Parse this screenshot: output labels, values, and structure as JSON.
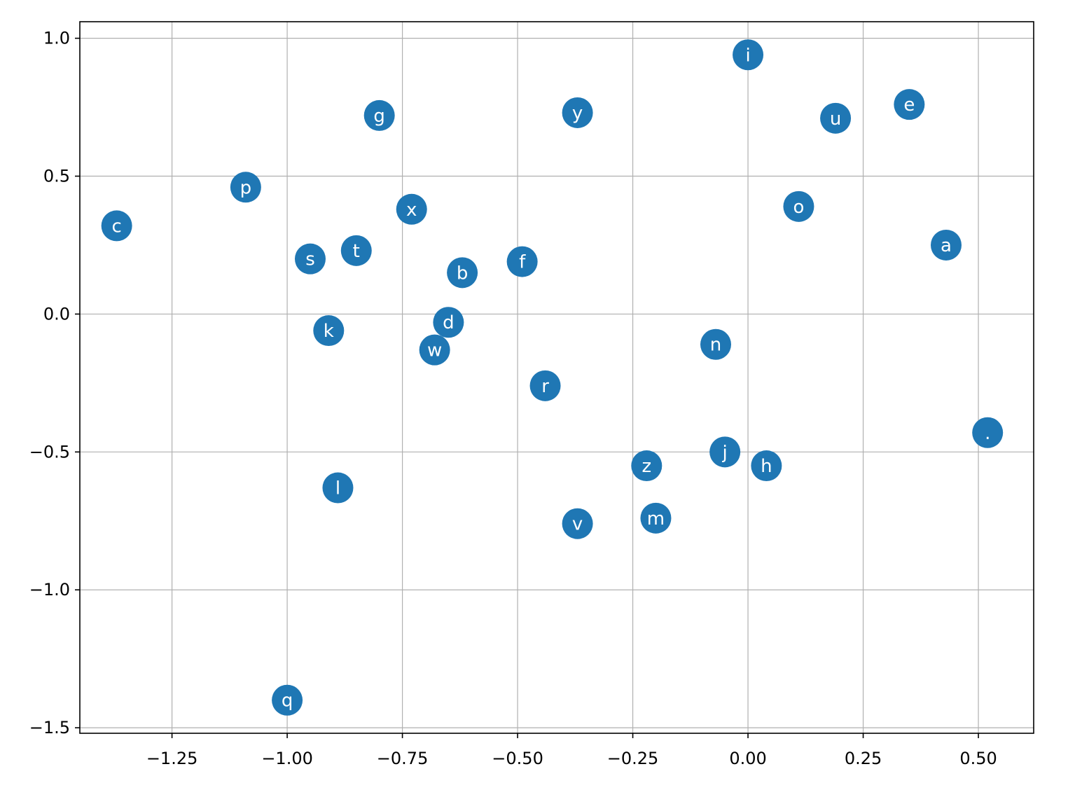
{
  "chart_data": {
    "type": "scatter",
    "title": "",
    "xlabel": "",
    "ylabel": "",
    "xlim": [
      -1.45,
      0.62
    ],
    "ylim": [
      -1.52,
      1.06
    ],
    "grid": true,
    "marker_color": "#1f77b4",
    "label_color": "#ffffff",
    "xticks": [
      -1.25,
      -1.0,
      -0.75,
      -0.5,
      -0.25,
      0.0,
      0.25,
      0.5
    ],
    "xtick_labels": [
      "−1.25",
      "−1.00",
      "−0.75",
      "−0.50",
      "−0.25",
      "0.00",
      "0.25",
      "0.50"
    ],
    "yticks": [
      -1.5,
      -1.0,
      -0.5,
      0.0,
      0.5,
      1.0
    ],
    "ytick_labels": [
      "−1.5",
      "−1.0",
      "−0.5",
      "0.0",
      "0.5",
      "1.0"
    ],
    "points": [
      {
        "label": "c",
        "x": -1.37,
        "y": 0.32
      },
      {
        "label": "p",
        "x": -1.09,
        "y": 0.46
      },
      {
        "label": "g",
        "x": -0.8,
        "y": 0.72
      },
      {
        "label": "y",
        "x": -0.37,
        "y": 0.73
      },
      {
        "label": "i",
        "x": 0.0,
        "y": 0.94
      },
      {
        "label": "u",
        "x": 0.19,
        "y": 0.71
      },
      {
        "label": "e",
        "x": 0.35,
        "y": 0.76
      },
      {
        "label": "x",
        "x": -0.73,
        "y": 0.38
      },
      {
        "label": "o",
        "x": 0.11,
        "y": 0.39
      },
      {
        "label": "a",
        "x": 0.43,
        "y": 0.25
      },
      {
        "label": "s",
        "x": -0.95,
        "y": 0.2
      },
      {
        "label": "t",
        "x": -0.85,
        "y": 0.23
      },
      {
        "label": "b",
        "x": -0.62,
        "y": 0.15
      },
      {
        "label": "f",
        "x": -0.49,
        "y": 0.19
      },
      {
        "label": "k",
        "x": -0.91,
        "y": -0.06
      },
      {
        "label": "d",
        "x": -0.65,
        "y": -0.03
      },
      {
        "label": "w",
        "x": -0.68,
        "y": -0.13
      },
      {
        "label": "n",
        "x": -0.07,
        "y": -0.11
      },
      {
        "label": "r",
        "x": -0.44,
        "y": -0.26
      },
      {
        "label": ".",
        "x": 0.52,
        "y": -0.43
      },
      {
        "label": "j",
        "x": -0.05,
        "y": -0.5
      },
      {
        "label": "z",
        "x": -0.22,
        "y": -0.55
      },
      {
        "label": "h",
        "x": 0.04,
        "y": -0.55
      },
      {
        "label": "l",
        "x": -0.89,
        "y": -0.63
      },
      {
        "label": "v",
        "x": -0.37,
        "y": -0.76
      },
      {
        "label": "m",
        "x": -0.2,
        "y": -0.74
      },
      {
        "label": "q",
        "x": -1.0,
        "y": -1.4
      }
    ]
  }
}
